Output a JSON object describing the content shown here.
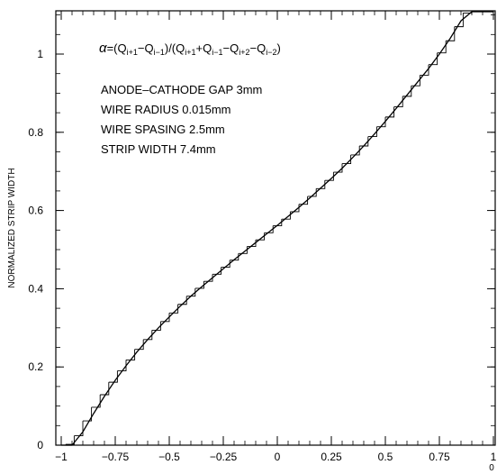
{
  "chart_data": {
    "type": "line",
    "title": "",
    "xlabel": "",
    "ylabel": "NORMALIZED STRIP WIDTH",
    "xlim": [
      -1.0,
      1.0
    ],
    "ylim": [
      0.0,
      1.1
    ],
    "grid": false,
    "x_ticks": [
      -1,
      -0.75,
      -0.5,
      -0.25,
      0,
      0.25,
      0.5,
      0.75,
      1
    ],
    "x_tick_labels": [
      "−1",
      "−0.75",
      "−0.5",
      "−0.25",
      "0",
      "0.25",
      "0.5",
      "0.75",
      "1"
    ],
    "y_ticks": [
      0,
      0.2,
      0.4,
      0.6,
      0.8,
      1
    ],
    "y_tick_labels": [
      "0",
      "0.2",
      "0.4",
      "0.6",
      "0.8",
      "1"
    ],
    "x_axis_corner_label": "0",
    "formula": {
      "alpha": "α",
      "eq": "=(Q",
      "s1": "i+1",
      "m1": "−Q",
      "s2": "i−1",
      "m2": ")/(Q",
      "s3": "i+1",
      "m3": "+Q",
      "s4": "i−1",
      "m4": "−Q",
      "s5": "i+2",
      "m5": "−Q",
      "s6": "i−2",
      "end": ")"
    },
    "annotations": [
      "ANODE–CATHODE GAP 3mm",
      "WIRE RADIUS 0.015mm",
      "WIRE SPASING 2.5mm",
      "STRIP WIDTH 7.4mm"
    ],
    "series": [
      {
        "style": "smooth",
        "x": [
          -1.0,
          -0.95,
          -0.9,
          -0.85,
          -0.8,
          -0.75,
          -0.7,
          -0.65,
          -0.6,
          -0.55,
          -0.5,
          -0.45,
          -0.4,
          -0.35,
          -0.3,
          -0.25,
          -0.2,
          -0.15,
          -0.1,
          -0.05,
          0.0,
          0.05,
          0.1,
          0.15,
          0.2,
          0.25,
          0.3,
          0.35,
          0.4,
          0.45,
          0.5,
          0.55,
          0.6,
          0.65,
          0.7,
          0.75,
          0.8,
          0.85,
          0.9,
          0.93,
          0.96,
          1.0
        ],
        "y": [
          0.0,
          0.0,
          0.034,
          0.081,
          0.125,
          0.166,
          0.203,
          0.238,
          0.27,
          0.3,
          0.328,
          0.355,
          0.381,
          0.405,
          0.428,
          0.451,
          0.474,
          0.496,
          0.518,
          0.54,
          0.562,
          0.585,
          0.608,
          0.632,
          0.657,
          0.682,
          0.708,
          0.736,
          0.765,
          0.796,
          0.828,
          0.861,
          0.895,
          0.929,
          0.963,
          1.0,
          1.04,
          1.085,
          1.125,
          1.14,
          1.145,
          1.145
        ]
      },
      {
        "style": "histogram-steps",
        "bin_width": 0.04,
        "x": [
          -0.96,
          -0.92,
          -0.88,
          -0.84,
          -0.8,
          -0.76,
          -0.72,
          -0.68,
          -0.64,
          -0.6,
          -0.56,
          -0.52,
          -0.48,
          -0.44,
          -0.4,
          -0.36,
          -0.32,
          -0.28,
          -0.24,
          -0.2,
          -0.16,
          -0.12,
          -0.08,
          -0.04,
          0.0,
          0.04,
          0.08,
          0.12,
          0.16,
          0.2,
          0.24,
          0.28,
          0.32,
          0.36,
          0.4,
          0.44,
          0.48,
          0.52,
          0.56,
          0.6,
          0.64,
          0.68,
          0.72,
          0.76,
          0.8,
          0.84,
          0.88,
          0.92,
          0.96
        ],
        "y": [
          0.002,
          0.024,
          0.062,
          0.097,
          0.129,
          0.161,
          0.19,
          0.218,
          0.245,
          0.27,
          0.294,
          0.316,
          0.338,
          0.36,
          0.381,
          0.401,
          0.419,
          0.437,
          0.455,
          0.473,
          0.49,
          0.508,
          0.525,
          0.543,
          0.561,
          0.578,
          0.597,
          0.616,
          0.636,
          0.656,
          0.677,
          0.698,
          0.72,
          0.742,
          0.765,
          0.789,
          0.814,
          0.839,
          0.865,
          0.892,
          0.919,
          0.946,
          0.973,
          1.003,
          1.034,
          1.07,
          1.105,
          1.135,
          1.14
        ]
      }
    ]
  }
}
